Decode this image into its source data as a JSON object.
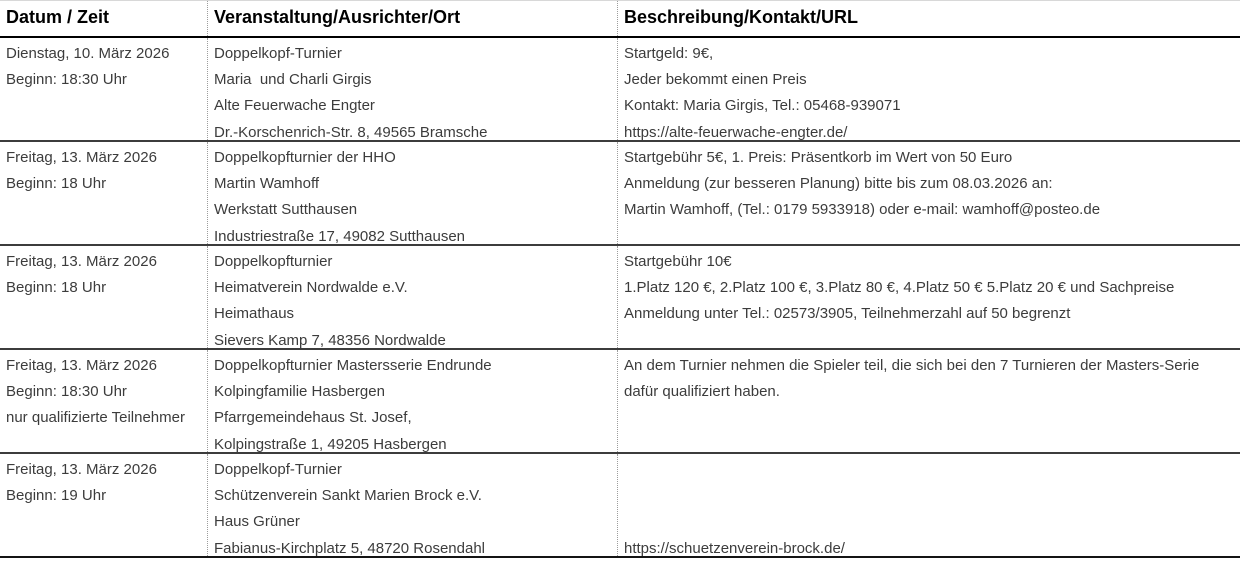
{
  "table": {
    "columns": [
      {
        "label": "Datum / Zeit"
      },
      {
        "label": "Veranstaltung/Ausrichter/Ort"
      },
      {
        "label": "Beschreibung/Kontakt/URL"
      }
    ],
    "rows": [
      {
        "cells": [
          {
            "lines": [
              "Dienstag, 10. März 2026",
              "Beginn: 18:30 Uhr",
              "",
              ""
            ]
          },
          {
            "lines": [
              "Doppelkopf-Turnier",
              "Maria  und Charli Girgis",
              "Alte Feuerwache Engter",
              "Dr.-Korschenrich-Str. 8, 49565 Bramsche"
            ]
          },
          {
            "lines": [
              "Startgeld: 9€,",
              "Jeder bekommt einen Preis",
              "Kontakt: Maria Girgis, Tel.: 05468-939071",
              "https://alte-feuerwache-engter.de/"
            ]
          }
        ]
      },
      {
        "cells": [
          {
            "lines": [
              "Freitag, 13. März 2026",
              "Beginn: 18 Uhr",
              "",
              ""
            ]
          },
          {
            "lines": [
              "Doppelkopfturnier der HHO",
              "Martin Wamhoff",
              "Werkstatt Sutthausen",
              "Industriestraße 17, 49082 Sutthausen"
            ]
          },
          {
            "lines": [
              "Startgebühr 5€, 1. Preis: Präsentkorb im Wert von 50 Euro",
              "Anmeldung (zur besseren Planung) bitte bis zum 08.03.2026 an:",
              "Martin Wamhoff, (Tel.: 0179 5933918) oder e-mail: wamhoff@posteo.de",
              ""
            ]
          }
        ]
      },
      {
        "cells": [
          {
            "lines": [
              "Freitag, 13. März 2026",
              "Beginn: 18 Uhr",
              "",
              ""
            ]
          },
          {
            "lines": [
              "Doppelkopfturnier",
              "Heimatverein Nordwalde e.V.",
              "Heimathaus",
              "Sievers Kamp 7, 48356 Nordwalde"
            ]
          },
          {
            "lines": [
              "Startgebühr 10€",
              "1.Platz 120 €, 2.Platz 100 €, 3.Platz 80 €, 4.Platz 50 € 5.Platz 20 € und Sachpreise",
              "Anmeldung unter Tel.: 02573/3905, Teilnehmerzahl auf 50 begrenzt",
              ""
            ]
          }
        ]
      },
      {
        "cells": [
          {
            "lines": [
              "Freitag, 13. März 2026",
              "Beginn: 18:30 Uhr",
              "nur qualifizierte Teilnehmer",
              ""
            ]
          },
          {
            "lines": [
              "Doppelkopfturnier Mastersserie Endrunde",
              "Kolpingfamilie Hasbergen",
              "Pfarrgemeindehaus St. Josef,",
              "Kolpingstraße 1, 49205 Hasbergen"
            ]
          },
          {
            "lines": [
              "An dem Turnier nehmen die Spieler teil, die sich bei den 7 Turnieren der Masters-Serie",
              "dafür qualifiziert haben.",
              "",
              ""
            ]
          }
        ]
      },
      {
        "cells": [
          {
            "lines": [
              "Freitag, 13. März 2026",
              "Beginn: 19 Uhr",
              "",
              ""
            ]
          },
          {
            "lines": [
              "Doppelkopf-Turnier",
              "Schützenverein Sankt Marien Brock e.V.",
              "Haus Grüner",
              "Fabianus-Kirchplatz 5, 48720 Rosendahl"
            ]
          },
          {
            "lines": [
              "",
              "",
              "",
              "https://schuetzenverein-brock.de/"
            ]
          }
        ]
      }
    ]
  },
  "colors": {
    "header_text": "#000000",
    "body_text": "#3c3c3c",
    "row_separator": "#3c3c3c",
    "column_separator": "#9c9c9c",
    "top_border": "#d8d8d8"
  },
  "column_names": [
    "datum-zeit",
    "veranstaltung-ausrichter-ort",
    "beschreibung-kontakt-url"
  ]
}
